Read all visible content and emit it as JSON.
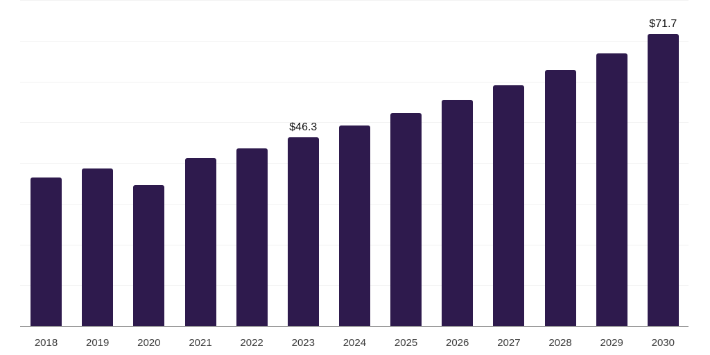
{
  "chart_data": {
    "type": "bar",
    "title": "",
    "xlabel": "",
    "ylabel": "",
    "categories": [
      "2018",
      "2019",
      "2020",
      "2021",
      "2022",
      "2023",
      "2024",
      "2025",
      "2026",
      "2027",
      "2028",
      "2029",
      "2030"
    ],
    "values": [
      36.5,
      38.7,
      34.6,
      41.2,
      43.6,
      46.3,
      49.2,
      52.2,
      55.5,
      59.0,
      62.9,
      66.9,
      71.7
    ],
    "data_labels": [
      "",
      "",
      "",
      "",
      "",
      "$46.3",
      "",
      "",
      "",
      "",
      "",
      "",
      "$71.7"
    ],
    "ylim": [
      0,
      80
    ],
    "grid_step": 10,
    "grid": true,
    "legend": false,
    "colors": {
      "bar": "#2e1a4d",
      "gridline": "#f2f2f2",
      "axis": "#5f5f5f",
      "tick_label": "#3a3a3a",
      "data_label": "#111111",
      "background": "#ffffff"
    }
  }
}
